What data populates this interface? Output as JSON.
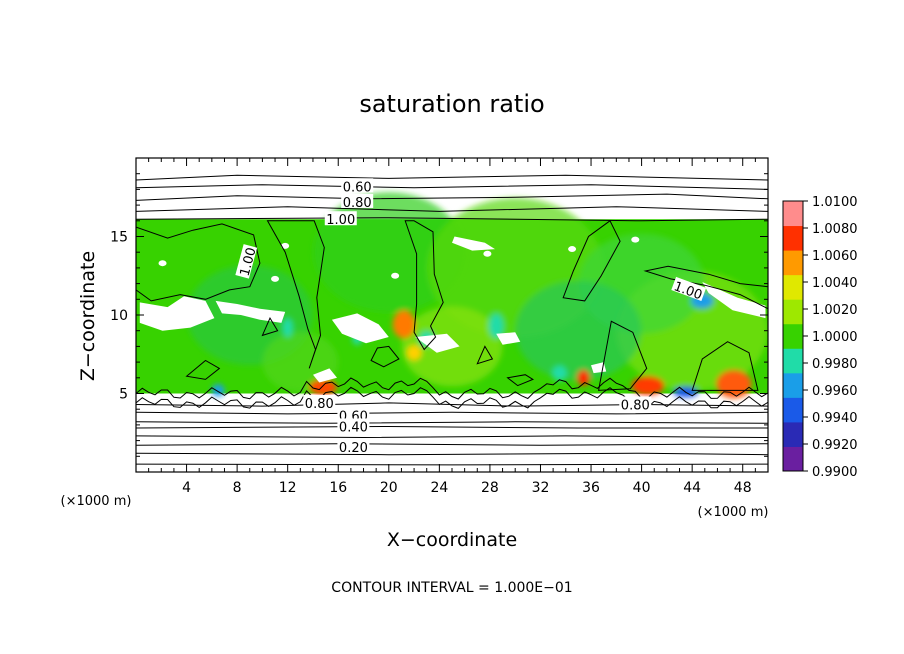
{
  "chart_data": {
    "type": "heatmap",
    "title": "saturation ratio",
    "xlabel": "X−coordinate",
    "ylabel": "Z−coordinate",
    "x_unit": "(×1000 m)",
    "y_unit": "(×1000 m)",
    "xlim": [
      0,
      50
    ],
    "ylim": [
      0,
      20
    ],
    "xticks": [
      4,
      8,
      12,
      16,
      20,
      24,
      28,
      32,
      36,
      40,
      44,
      48
    ],
    "xtick_labels": [
      "4",
      "8",
      "12",
      "16",
      "20",
      "24",
      "28",
      "32",
      "36",
      "40",
      "44",
      "48"
    ],
    "yticks": [
      5,
      10,
      15
    ],
    "ytick_labels": [
      "5",
      "10",
      "15"
    ],
    "colorbar": {
      "min": 0.99,
      "max": 1.01,
      "ticks": [
        "1.0100",
        "1.0080",
        "1.0060",
        "1.0040",
        "1.0020",
        "1.0000",
        "0.9980",
        "0.9960",
        "0.9940",
        "0.9920",
        "0.9900"
      ],
      "colors": [
        "#6a1fa0",
        "#2a2ab5",
        "#1a5ae8",
        "#1a9ee8",
        "#20dca8",
        "#37d200",
        "#9ee800",
        "#e0e800",
        "#ff9a00",
        "#ff3000",
        "#ff8c8c"
      ]
    },
    "shaded_region": {
      "z_min": 5,
      "z_max": 16.1
    },
    "contour_levels_labeled": [
      {
        "label": "0.60",
        "x": 17.5,
        "z": 18.2
      },
      {
        "label": "0.80",
        "x": 17.5,
        "z": 17.2
      },
      {
        "label": "1.00",
        "x": 16.2,
        "z": 16.1
      },
      {
        "label": "1.00",
        "x": 8.8,
        "z": 13.4
      },
      {
        "label": "1.00",
        "x": 43.7,
        "z": 11.6
      },
      {
        "label": "0.80",
        "x": 14.5,
        "z": 4.4
      },
      {
        "label": "0.80",
        "x": 39.5,
        "z": 4.3
      },
      {
        "label": "0.60",
        "x": 17.2,
        "z": 3.6
      },
      {
        "label": "0.40",
        "x": 17.2,
        "z": 2.9
      },
      {
        "label": "0.20",
        "x": 17.2,
        "z": 1.6
      }
    ],
    "contour_interval_text": "CONTOUR INTERVAL = 1.000E−01"
  }
}
